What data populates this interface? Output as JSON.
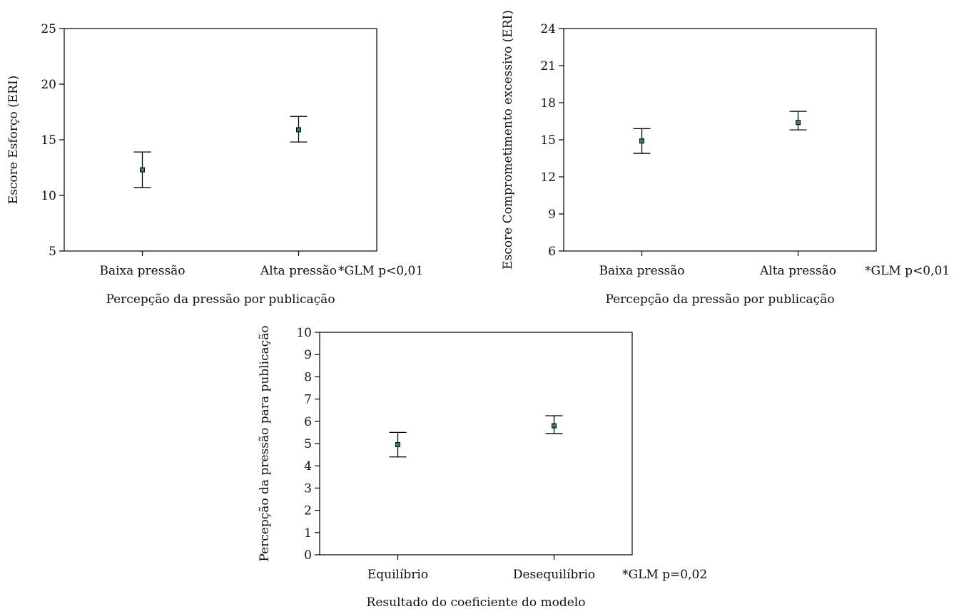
{
  "chart_data": [
    {
      "type": "errorbar",
      "xlabel": "Percepção da pressão por publicação",
      "ylabel": "Escore Esforço (ERI)",
      "categories": [
        "Baixa pressão",
        "Alta pressão"
      ],
      "values": [
        12.3,
        15.9
      ],
      "lower": [
        10.7,
        14.8
      ],
      "upper": [
        13.9,
        17.1
      ],
      "ylim": [
        5,
        25
      ],
      "yticks": [
        5,
        10,
        15,
        20,
        25
      ],
      "note": "*GLM p<0,01"
    },
    {
      "type": "errorbar",
      "xlabel": "Percepção da pressão por publicação",
      "ylabel": "Escore Comprometimento excessivo (ERI)",
      "categories": [
        "Baixa pressão",
        "Alta pressão"
      ],
      "values": [
        14.9,
        16.4
      ],
      "lower": [
        13.9,
        15.8
      ],
      "upper": [
        15.9,
        17.3
      ],
      "ylim": [
        6,
        24
      ],
      "yticks": [
        6,
        9,
        12,
        15,
        18,
        21,
        24
      ],
      "note": "*GLM p<0,01"
    },
    {
      "type": "errorbar",
      "xlabel": "Resultado do coeficiente do modelo",
      "ylabel": "Percepção da pressão para publicação",
      "categories": [
        "Equilíbrio",
        "Desequilíbrio"
      ],
      "values": [
        4.95,
        5.8
      ],
      "lower": [
        4.4,
        5.45
      ],
      "upper": [
        5.5,
        6.25
      ],
      "ylim": [
        0,
        10
      ],
      "yticks": [
        0,
        1,
        2,
        3,
        4,
        5,
        6,
        7,
        8,
        9,
        10
      ],
      "note": "*GLM p=0,02"
    }
  ]
}
